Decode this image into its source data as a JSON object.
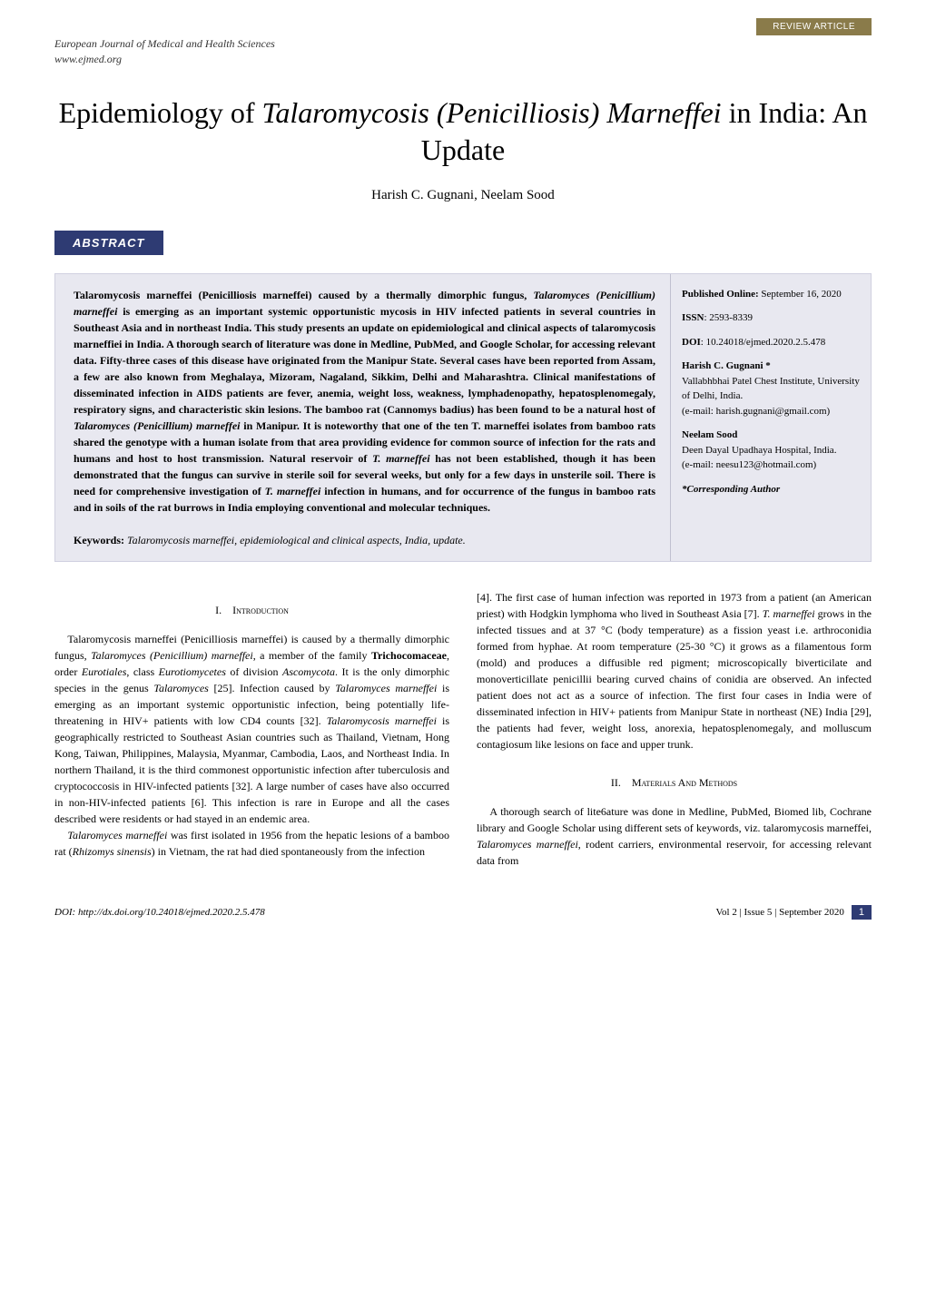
{
  "review_tag": "REVIEW ARTICLE",
  "journal": {
    "name": "European Journal of Medical and Health Sciences",
    "url": "www.ejmed.org"
  },
  "title": {
    "pre": "Epidemiology of ",
    "italic": "Talaromycosis (Penicilliosis) Marneffei",
    "post": " in India: An Update"
  },
  "authors": "Harish C. Gugnani, Neelam Sood",
  "abstract": {
    "label": "ABSTRACT",
    "text_parts": [
      {
        "t": "Talaromycosis marneffei (Penicilliosis marneffei) caused by a thermally dimorphic fungus, ",
        "i": false
      },
      {
        "t": "Talaromyces (Penicillium) marneffei",
        "i": true
      },
      {
        "t": " is emerging as an important systemic opportunistic mycosis in HIV infected patients in several countries in Southeast Asia and in northeast India. This study presents an update on epidemiological and clinical aspects of talaromycosis marneffiei in India. A thorough search of literature was done in Medline, PubMed, and Google Scholar, for accessing relevant data. Fifty-three cases of this disease have originated from the Manipur State. Several cases have been reported from Assam, a few are also known from Meghalaya, Mizoram, Nagaland, Sikkim, Delhi and Maharashtra. Clinical manifestations of disseminated infection in AIDS patients are fever, anemia, weight loss, weakness, lymphadenopathy, hepatosplenomegaly, respiratory signs, and characteristic skin lesions. The bamboo rat (Cannomys badius) has been found to be a natural host of ",
        "i": false
      },
      {
        "t": "Talaromyces (Penicillium) marneffei",
        "i": true
      },
      {
        "t": " in Manipur. It is noteworthy that one of the ten T. marneffei isolates from bamboo rats shared the genotype with a human isolate from that area providing evidence for common source of infection for the rats and humans and host to host transmission. Natural reservoir of ",
        "i": false
      },
      {
        "t": "T. marneffei",
        "i": true
      },
      {
        "t": " has not been established, though it has been demonstrated that the fungus can survive in sterile soil for several weeks, but only for a few days in unsterile soil. There is need for comprehensive investigation of ",
        "i": false
      },
      {
        "t": "T. marneffei",
        "i": true
      },
      {
        "t": " infection in humans, and for occurrence of the fungus in bamboo rats and in soils of the rat burrows in India employing conventional and molecular techniques.",
        "i": false
      }
    ],
    "keywords_label": "Keywords:",
    "keywords_text": "Talaromycosis marneffei, epidemiological and clinical aspects, India, update."
  },
  "sidebar": {
    "published_label": "Published Online:",
    "published_value": "September 16, 2020",
    "issn_label": "ISSN",
    "issn_value": ": 2593-8339",
    "doi_label": "DOI",
    "doi_value": ": 10.24018/ejmed.2020.2.5.478",
    "author1": {
      "name": "Harish C. Gugnani *",
      "affil": "Vallabhbhai Patel Chest Institute, University of Delhi, India.",
      "email": "(e-mail: harish.gugnani@gmail.com)"
    },
    "author2": {
      "name": "Neelam Sood",
      "affil": "Deen Dayal Upadhaya Hospital, India.",
      "email": "(e-mail: neesu123@hotmail.com)"
    },
    "corresponding": "*Corresponding Author"
  },
  "sections": {
    "intro_heading_num": "I.",
    "intro_heading": "Introduction",
    "intro_col1_p1_parts": [
      {
        "t": "Talaromycosis marneffei (Penicilliosis marneffei) is caused by a thermally dimorphic fungus, ",
        "i": false
      },
      {
        "t": "Talaromyces (Penicillium) marneffei",
        "i": true
      },
      {
        "t": ", a member of the family ",
        "i": false
      },
      {
        "t": "Trichocomaceae",
        "b": true
      },
      {
        "t": ", order ",
        "i": false
      },
      {
        "t": "Eurotiales",
        "i": true
      },
      {
        "t": ", class ",
        "i": false
      },
      {
        "t": "Eurotiomycetes",
        "i": true
      },
      {
        "t": " of division ",
        "i": false
      },
      {
        "t": "Ascomycota",
        "i": true
      },
      {
        "t": ". It is the only dimorphic species in the genus ",
        "i": false
      },
      {
        "t": "Talaromyces",
        "i": true
      },
      {
        "t": " [25]. Infection caused by ",
        "i": false
      },
      {
        "t": "Talaromyces marneffei",
        "i": true
      },
      {
        "t": " is emerging as an important systemic opportunistic infection, being potentially life-threatening in HIV+ patients with low CD4 counts [32]. ",
        "i": false
      },
      {
        "t": "Talaromycosis marneffei",
        "i": true
      },
      {
        "t": " is geographically restricted to Southeast Asian countries such as Thailand, Vietnam, Hong Kong, Taiwan, Philippines, Malaysia, Myanmar, Cambodia, Laos, and Northeast India. In northern Thailand, it is the third commonest opportunistic infection after tuberculosis and cryptococcosis in HIV-infected patients [32]. A large number of cases have also occurred in non-HIV-infected patients [6]. This infection is rare in Europe and all the cases described were residents or had stayed in an endemic area.",
        "i": false
      }
    ],
    "intro_col1_p2_parts": [
      {
        "t": "Talaromyces marneffei",
        "i": true
      },
      {
        "t": " was first isolated in 1956 from the hepatic lesions of a bamboo rat (",
        "i": false
      },
      {
        "t": "Rhizomys sinensis",
        "i": true
      },
      {
        "t": ") in Vietnam, the rat had died spontaneously from the infection",
        "i": false
      }
    ],
    "intro_col2_parts": [
      {
        "t": "[4]. The first case of human infection was reported in 1973 from a patient (an American priest) with Hodgkin lymphoma who lived in Southeast Asia [7]. ",
        "i": false
      },
      {
        "t": "T. marneffei",
        "i": true
      },
      {
        "t": " grows in the infected tissues and at 37 °C (body temperature) as a fission yeast i.e. arthroconidia formed from hyphae. At room temperature (25-30 °C) it grows as a filamentous form (mold) and produces a diffusible red pigment; microscopically biverticilate and monoverticillate penicillii bearing curved chains of conidia are observed. An infected patient does not act as a source of infection. The first four cases in India were of disseminated infection in HIV+ patients from Manipur State in northeast (NE) India [29], the patients had fever, weight loss, anorexia, hepatosplenomegaly, and molluscum contagiosum like lesions on face and upper trunk.",
        "i": false
      }
    ],
    "methods_heading_num": "II.",
    "methods_heading": "Materials And Methods",
    "methods_parts": [
      {
        "t": "A thorough search of lite6ature was done in Medline, PubMed, Biomed lib, Cochrane library and Google Scholar using different sets of keywords, viz. talaromycosis marneffei, ",
        "i": false
      },
      {
        "t": "Talaromyces marneffei",
        "i": true
      },
      {
        "t": ", rodent carriers, environmental reservoir, for accessing relevant data from",
        "i": false
      }
    ]
  },
  "footer": {
    "doi": "DOI: http://dx.doi.org/10.24018/ejmed.2020.2.5.478",
    "issue": "Vol 2 | Issue 5 | September 2020",
    "page": "1"
  },
  "colors": {
    "review_tag_bg": "#8a7b4a",
    "abstract_header_bg": "#2e3b73",
    "abstract_box_bg": "#e8e8f0",
    "page_num_bg": "#2e3b73",
    "text": "#000000",
    "background": "#ffffff"
  },
  "typography": {
    "title_fontsize": 32,
    "authors_fontsize": 15,
    "body_fontsize": 12,
    "abstract_fontsize": 12,
    "sidebar_fontsize": 11,
    "footer_fontsize": 11
  }
}
